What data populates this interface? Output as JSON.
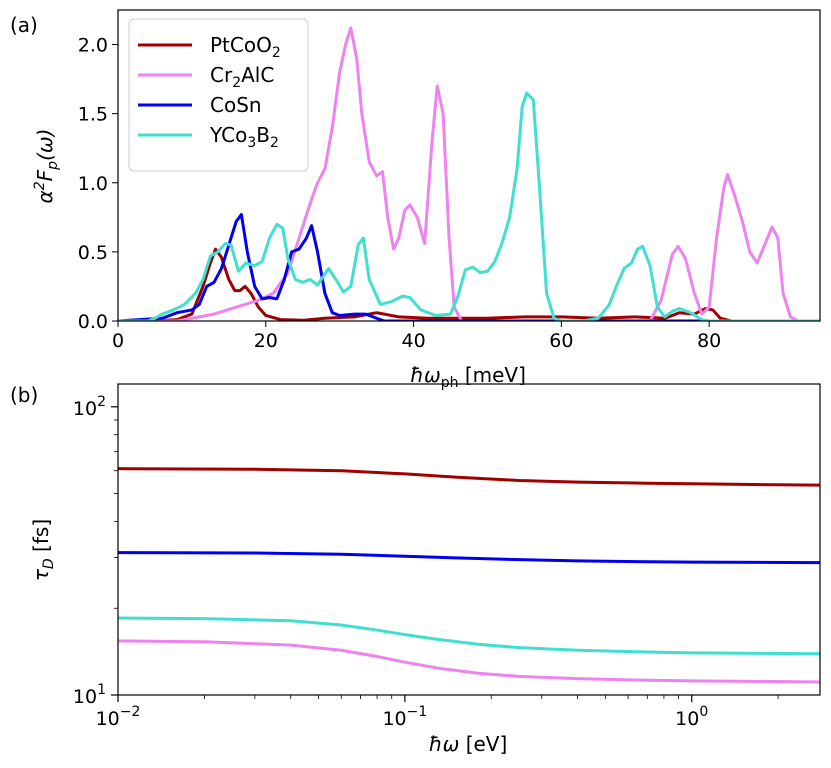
{
  "chart_data": [
    {
      "type": "line",
      "panel_label": "(a)",
      "xlabel": "ħω_ph [meV]",
      "ylabel": "α²F_p(ω)",
      "xlim": [
        0,
        95
      ],
      "ylim": [
        0,
        2.25
      ],
      "x_ticks": [
        0,
        20,
        40,
        60,
        80
      ],
      "y_ticks": [
        0.0,
        0.5,
        1.0,
        1.5,
        2.0
      ],
      "x_tick_labels": [
        "0",
        "20",
        "40",
        "60",
        "80"
      ],
      "y_tick_labels": [
        "0.0",
        "0.5",
        "1.0",
        "1.5",
        "2.0"
      ],
      "legend_position": "top-left",
      "series": [
        {
          "name": "PtCoO₂",
          "color": "#a00000",
          "points": [
            [
              0,
              0
            ],
            [
              5,
              0
            ],
            [
              8,
              0.01
            ],
            [
              10,
              0.05
            ],
            [
              11.5,
              0.25
            ],
            [
              12.5,
              0.42
            ],
            [
              13.2,
              0.52
            ],
            [
              14,
              0.46
            ],
            [
              15,
              0.3
            ],
            [
              15.8,
              0.22
            ],
            [
              16.5,
              0.22
            ],
            [
              17.2,
              0.25
            ],
            [
              18,
              0.2
            ],
            [
              19,
              0.1
            ],
            [
              20,
              0.04
            ],
            [
              22,
              0.01
            ],
            [
              25,
              0.005
            ],
            [
              28,
              0.02
            ],
            [
              32,
              0.03
            ],
            [
              35,
              0.06
            ],
            [
              38,
              0.03
            ],
            [
              42,
              0.02
            ],
            [
              46,
              0.02
            ],
            [
              50,
              0.02
            ],
            [
              55,
              0.03
            ],
            [
              60,
              0.03
            ],
            [
              65,
              0.02
            ],
            [
              70,
              0.03
            ],
            [
              74,
              0.02
            ],
            [
              76,
              0.06
            ],
            [
              78,
              0.05
            ],
            [
              79.5,
              0.09
            ],
            [
              80.5,
              0.08
            ],
            [
              81.5,
              0.02
            ],
            [
              83,
              0
            ],
            [
              95,
              0
            ]
          ]
        },
        {
          "name": "Cr₂AlC",
          "color": "#ee82ee",
          "points": [
            [
              0,
              0
            ],
            [
              8,
              0
            ],
            [
              10,
              0.02
            ],
            [
              13,
              0.05
            ],
            [
              16,
              0.1
            ],
            [
              19,
              0.15
            ],
            [
              21,
              0.2
            ],
            [
              23,
              0.35
            ],
            [
              24.5,
              0.6
            ],
            [
              26,
              0.85
            ],
            [
              27,
              1.0
            ],
            [
              28,
              1.1
            ],
            [
              29,
              1.4
            ],
            [
              30,
              1.8
            ],
            [
              30.8,
              2.0
            ],
            [
              31.5,
              2.12
            ],
            [
              32.3,
              1.9
            ],
            [
              33,
              1.5
            ],
            [
              34,
              1.15
            ],
            [
              35,
              1.05
            ],
            [
              35.8,
              1.08
            ],
            [
              36.5,
              0.75
            ],
            [
              37.3,
              0.52
            ],
            [
              38,
              0.6
            ],
            [
              38.8,
              0.8
            ],
            [
              39.5,
              0.84
            ],
            [
              40.5,
              0.75
            ],
            [
              41.5,
              0.56
            ],
            [
              42.5,
              1.3
            ],
            [
              43.2,
              1.7
            ],
            [
              44,
              1.5
            ],
            [
              44.8,
              0.6
            ],
            [
              45.5,
              0.1
            ],
            [
              46.5,
              0
            ],
            [
              55,
              0
            ],
            [
              72,
              0
            ],
            [
              73.5,
              0.15
            ],
            [
              75,
              0.48
            ],
            [
              75.8,
              0.54
            ],
            [
              76.8,
              0.45
            ],
            [
              78,
              0.2
            ],
            [
              79,
              0.05
            ],
            [
              80,
              0.1
            ],
            [
              81,
              0.6
            ],
            [
              82,
              0.97
            ],
            [
              82.5,
              1.06
            ],
            [
              83.5,
              0.9
            ],
            [
              84.5,
              0.72
            ],
            [
              85.5,
              0.5
            ],
            [
              86.5,
              0.42
            ],
            [
              87.5,
              0.55
            ],
            [
              88.5,
              0.68
            ],
            [
              89.3,
              0.6
            ],
            [
              90,
              0.2
            ],
            [
              91,
              0.03
            ],
            [
              92,
              0
            ],
            [
              95,
              0
            ]
          ]
        },
        {
          "name": "CoSn",
          "color": "#0000ee",
          "points": [
            [
              0,
              0
            ],
            [
              6,
              0.02
            ],
            [
              8,
              0.06
            ],
            [
              10,
              0.08
            ],
            [
              11,
              0.12
            ],
            [
              12,
              0.25
            ],
            [
              13,
              0.28
            ],
            [
              14,
              0.38
            ],
            [
              15,
              0.55
            ],
            [
              16,
              0.72
            ],
            [
              16.7,
              0.77
            ],
            [
              17.5,
              0.5
            ],
            [
              18.5,
              0.25
            ],
            [
              19.5,
              0.16
            ],
            [
              20.5,
              0.17
            ],
            [
              21.5,
              0.16
            ],
            [
              22.5,
              0.3
            ],
            [
              23.5,
              0.5
            ],
            [
              24.5,
              0.52
            ],
            [
              25.5,
              0.6
            ],
            [
              26.2,
              0.69
            ],
            [
              27,
              0.5
            ],
            [
              28,
              0.2
            ],
            [
              29,
              0.06
            ],
            [
              30,
              0.04
            ],
            [
              32,
              0.05
            ],
            [
              33.5,
              0.05
            ],
            [
              35,
              0.02
            ],
            [
              36,
              0
            ],
            [
              95,
              0
            ]
          ]
        },
        {
          "name": "YCo₃B₂",
          "color": "#40e0d0",
          "points": [
            [
              0,
              0
            ],
            [
              4,
              0
            ],
            [
              5,
              0.02
            ],
            [
              6,
              0.05
            ],
            [
              7.5,
              0.08
            ],
            [
              9,
              0.12
            ],
            [
              10.5,
              0.2
            ],
            [
              11.5,
              0.3
            ],
            [
              12.5,
              0.47
            ],
            [
              13.5,
              0.5
            ],
            [
              14.5,
              0.56
            ],
            [
              15.3,
              0.55
            ],
            [
              16.3,
              0.36
            ],
            [
              17.3,
              0.42
            ],
            [
              18.5,
              0.4
            ],
            [
              19.5,
              0.43
            ],
            [
              20.5,
              0.6
            ],
            [
              21.5,
              0.7
            ],
            [
              22.3,
              0.67
            ],
            [
              23,
              0.45
            ],
            [
              24,
              0.3
            ],
            [
              25,
              0.28
            ],
            [
              26,
              0.3
            ],
            [
              27,
              0.26
            ],
            [
              28.5,
              0.38
            ],
            [
              29.5,
              0.3
            ],
            [
              30.5,
              0.21
            ],
            [
              31.5,
              0.25
            ],
            [
              32.5,
              0.55
            ],
            [
              33.2,
              0.6
            ],
            [
              34,
              0.3
            ],
            [
              35.5,
              0.12
            ],
            [
              37,
              0.14
            ],
            [
              38.5,
              0.18
            ],
            [
              39.5,
              0.17
            ],
            [
              41,
              0.08
            ],
            [
              43,
              0.04
            ],
            [
              45,
              0.05
            ],
            [
              46,
              0.18
            ],
            [
              47,
              0.37
            ],
            [
              48,
              0.39
            ],
            [
              49,
              0.35
            ],
            [
              50,
              0.36
            ],
            [
              51,
              0.43
            ],
            [
              52,
              0.57
            ],
            [
              53,
              0.75
            ],
            [
              54,
              1.1
            ],
            [
              54.7,
              1.55
            ],
            [
              55.3,
              1.65
            ],
            [
              56.2,
              1.6
            ],
            [
              57,
              1.0
            ],
            [
              58,
              0.2
            ],
            [
              59,
              0.02
            ],
            [
              60,
              0
            ],
            [
              63,
              0
            ],
            [
              65,
              0.02
            ],
            [
              66.5,
              0.12
            ],
            [
              67.5,
              0.26
            ],
            [
              68.5,
              0.38
            ],
            [
              69.5,
              0.42
            ],
            [
              70.3,
              0.52
            ],
            [
              71,
              0.54
            ],
            [
              72,
              0.4
            ],
            [
              73,
              0.1
            ],
            [
              74,
              0.03
            ],
            [
              75,
              0.07
            ],
            [
              76,
              0.09
            ],
            [
              77.5,
              0.06
            ],
            [
              79,
              0.01
            ],
            [
              80,
              0
            ],
            [
              95,
              0
            ]
          ]
        }
      ]
    },
    {
      "type": "line",
      "panel_label": "(b)",
      "xlabel": "ħω [eV]",
      "ylabel": "τ_D [fs]",
      "x_scale": "log",
      "y_scale": "log",
      "xlim": [
        0.01,
        2.8
      ],
      "ylim": [
        10,
        120
      ],
      "x_major_ticks": [
        0.01,
        0.1,
        1
      ],
      "y_major_ticks": [
        10,
        100
      ],
      "x_tick_labels": [
        {
          "base": "10",
          "exp": "−2"
        },
        {
          "base": "10",
          "exp": "−1"
        },
        {
          "base": "10",
          "exp": "0"
        }
      ],
      "y_tick_labels": [
        {
          "base": "10",
          "exp": "1"
        },
        {
          "base": "10",
          "exp": "2"
        }
      ],
      "grid": false,
      "series": [
        {
          "color": "#a00000",
          "points": [
            [
              0.01,
              61
            ],
            [
              0.03,
              60.7
            ],
            [
              0.06,
              60
            ],
            [
              0.1,
              58.5
            ],
            [
              0.15,
              57
            ],
            [
              0.25,
              55.5
            ],
            [
              0.4,
              54.8
            ],
            [
              0.7,
              54.3
            ],
            [
              1.0,
              54.1
            ],
            [
              1.5,
              53.8
            ],
            [
              2.8,
              53.5
            ]
          ]
        },
        {
          "color": "#0000ee",
          "points": [
            [
              0.01,
              31.2
            ],
            [
              0.03,
              31.1
            ],
            [
              0.06,
              30.8
            ],
            [
              0.1,
              30.3
            ],
            [
              0.15,
              29.9
            ],
            [
              0.25,
              29.5
            ],
            [
              0.4,
              29.2
            ],
            [
              0.7,
              29.0
            ],
            [
              1.0,
              28.9
            ],
            [
              2.8,
              28.8
            ]
          ]
        },
        {
          "color": "#40e0d0",
          "points": [
            [
              0.01,
              18.5
            ],
            [
              0.02,
              18.4
            ],
            [
              0.04,
              18.1
            ],
            [
              0.06,
              17.5
            ],
            [
              0.08,
              16.8
            ],
            [
              0.1,
              16.2
            ],
            [
              0.13,
              15.6
            ],
            [
              0.18,
              15.0
            ],
            [
              0.25,
              14.6
            ],
            [
              0.4,
              14.3
            ],
            [
              0.7,
              14.1
            ],
            [
              1.0,
              14.0
            ],
            [
              2.8,
              13.9
            ]
          ]
        },
        {
          "color": "#ee82ee",
          "points": [
            [
              0.01,
              15.4
            ],
            [
              0.02,
              15.3
            ],
            [
              0.04,
              14.9
            ],
            [
              0.06,
              14.3
            ],
            [
              0.08,
              13.6
            ],
            [
              0.1,
              13.0
            ],
            [
              0.13,
              12.4
            ],
            [
              0.18,
              11.9
            ],
            [
              0.25,
              11.6
            ],
            [
              0.4,
              11.4
            ],
            [
              0.7,
              11.25
            ],
            [
              1.0,
              11.2
            ],
            [
              2.8,
              11.1
            ]
          ]
        }
      ]
    }
  ]
}
